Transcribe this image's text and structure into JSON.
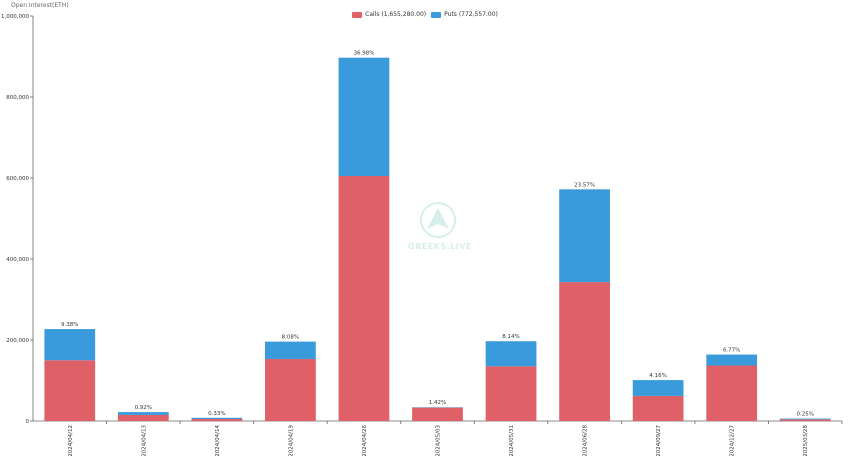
{
  "chart_title": "Open Interest(ETH)",
  "watermark_text": "GREEKS.LIVE",
  "legend": [
    {
      "label": "Calls (1,655,280.00)",
      "color": "#e06067"
    },
    {
      "label": "Puts (772,557.00)",
      "color": "#3a9bdc"
    }
  ],
  "chart_data": {
    "type": "bar",
    "stacked": true,
    "categories": [
      "2024/04/12",
      "2024/04/13",
      "2024/04/14",
      "2024/04/19",
      "2024/04/26",
      "2024/05/03",
      "2024/05/31",
      "2024/06/28",
      "2024/09/27",
      "2024/12/27",
      "2025/03/28"
    ],
    "series": [
      {
        "name": "Calls (1,655,280.00)",
        "color": "#e06067",
        "values": [
          150000,
          15000,
          5000,
          153000,
          605000,
          33000,
          135000,
          343000,
          62000,
          137000,
          4000
        ]
      },
      {
        "name": "Puts (772,557.00)",
        "color": "#3a9bdc",
        "values": [
          77000,
          7000,
          3000,
          43000,
          292000,
          1000,
          62000,
          229000,
          39000,
          27000,
          2000
        ]
      }
    ],
    "data_labels": [
      "9.38%",
      "0.92%",
      "0.33%",
      "8.08%",
      "36.98%",
      "1.42%",
      "8.14%",
      "23.57%",
      "4.16%",
      "6.77%",
      "0.25%"
    ],
    "ylim": [
      0,
      1000000
    ],
    "yticks": [
      0,
      200000,
      400000,
      600000,
      800000,
      1000000
    ],
    "ytick_labels": [
      "0",
      "200,000",
      "400,000",
      "600,000",
      "800,000",
      "1,000,000"
    ],
    "grid": false,
    "legend_position": "top-center"
  }
}
